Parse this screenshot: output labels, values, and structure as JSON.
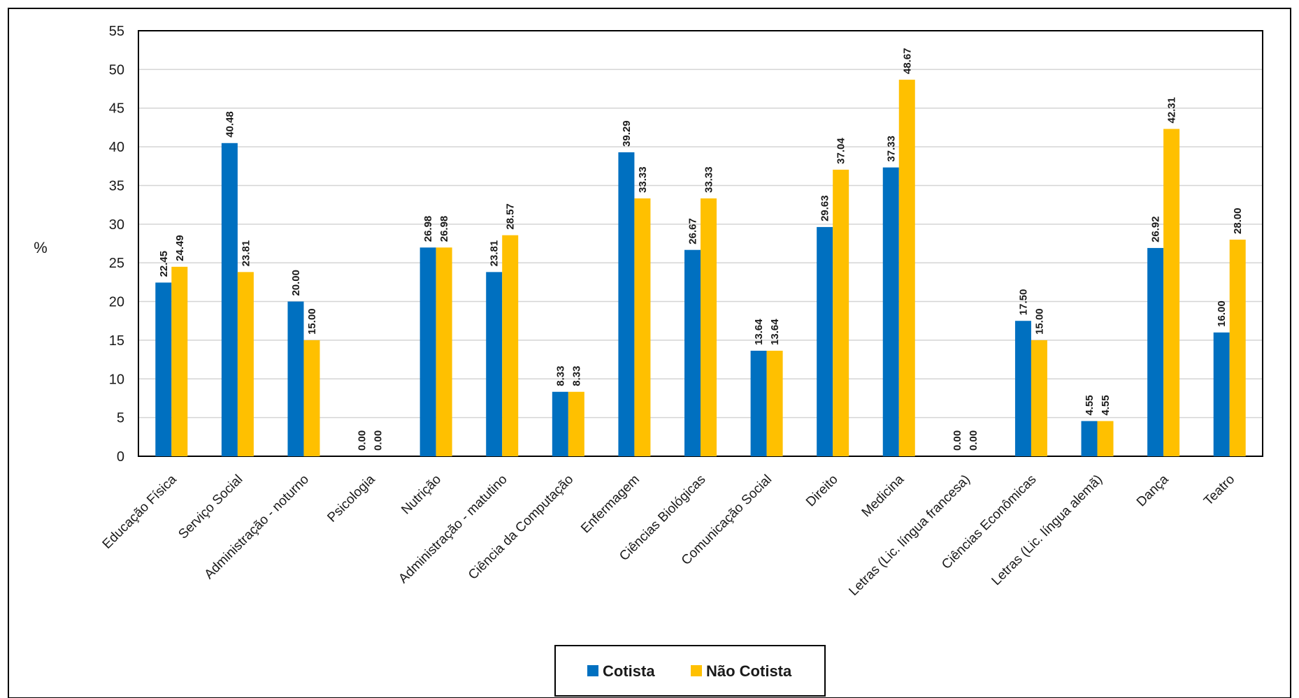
{
  "chart_data": {
    "type": "bar",
    "title": "",
    "xlabel": "",
    "ylabel": "%",
    "ylim": [
      0,
      55
    ],
    "yticks": [
      0,
      5,
      10,
      15,
      20,
      25,
      30,
      35,
      40,
      45,
      50,
      55
    ],
    "grid": true,
    "legend_position": "bottom-center",
    "categories": [
      "Educação Física",
      "Serviço Social",
      "Administração - noturno",
      "Psicologia",
      "Nutrição",
      "Administração - matutino",
      "Ciência da Computação",
      "Enfermagem",
      "Ciências Biológicas",
      "Comunicação Social",
      "Direito",
      "Medicina",
      "Letras (Lic. língua francesa)",
      "Ciências Econômicas",
      "Letras (Lic. língua alemã)",
      "Dança",
      "Teatro"
    ],
    "series": [
      {
        "name": "Cotista",
        "color": "#0070C0",
        "values": [
          22.45,
          40.48,
          20.0,
          0.0,
          26.98,
          23.81,
          8.33,
          39.29,
          26.67,
          13.64,
          29.63,
          37.33,
          0.0,
          17.5,
          4.55,
          26.92,
          16.0
        ],
        "labels": [
          "22.45",
          "40.48",
          "20.00",
          "0.00",
          "26.98",
          "23.81",
          "8.33",
          "39.29",
          "26.67",
          "13.64",
          "29.63",
          "37.33",
          "0.00",
          "17.50",
          "4.55",
          "26.92",
          "16.00"
        ]
      },
      {
        "name": "Não Cotista",
        "color": "#FFC000",
        "values": [
          24.49,
          23.81,
          15.0,
          0.0,
          26.98,
          28.57,
          8.33,
          33.33,
          33.33,
          13.64,
          37.04,
          48.67,
          0.0,
          15.0,
          4.55,
          42.31,
          28.0
        ],
        "labels": [
          "24.49",
          "23.81",
          "15.00",
          "0.00",
          "26.98",
          "28.57",
          "8.33",
          "33.33",
          "33.33",
          "13.64",
          "37.04",
          "48.67",
          "0.00",
          "15.00",
          "4.55",
          "42.31",
          "28.00"
        ]
      }
    ]
  }
}
